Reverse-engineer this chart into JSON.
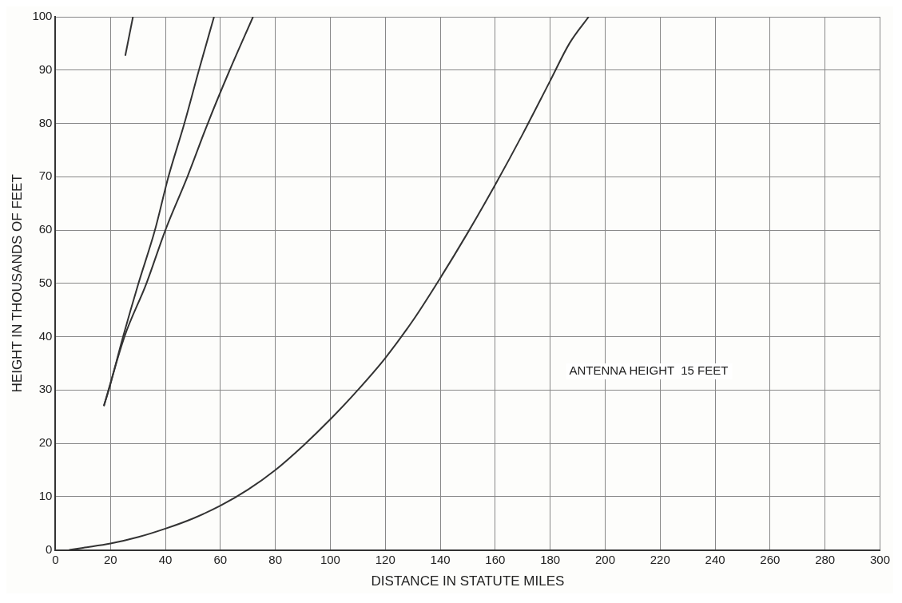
{
  "chart_data": {
    "type": "line",
    "xlabel": "DISTANCE IN STATUTE MILES",
    "ylabel": "HEIGHT IN THOUSANDS OF FEET",
    "annotations": [
      "ANTENNA HEIGHT  15 FEET"
    ],
    "xlim": [
      0,
      300
    ],
    "xticks": [
      0,
      20,
      40,
      60,
      80,
      100,
      120,
      140,
      160,
      180,
      200,
      220,
      240,
      260,
      280,
      300
    ],
    "ylim": [
      0,
      100
    ],
    "yticks": [
      0,
      10,
      20,
      30,
      40,
      50,
      60,
      70,
      80,
      90,
      100
    ],
    "grid": true,
    "legend": false,
    "marker": "none",
    "line_style": "solid",
    "series": [
      {
        "color": "#333333",
        "x": [
          25.4,
          28.2
        ],
        "values": [
          92.7,
          100
        ]
      },
      {
        "color": "#333333",
        "x": [
          17.6,
          19.4,
          24.6,
          30.2,
          36.2,
          41.1,
          46.9,
          52.2,
          57.7
        ],
        "values": [
          27,
          30,
          40,
          50,
          60,
          70,
          80,
          90,
          100
        ]
      },
      {
        "color": "#333333",
        "x": [
          17.6,
          25.1,
          33.1,
          40,
          48,
          55.4,
          63.4,
          71.9
        ],
        "values": [
          27,
          40,
          50,
          60,
          70,
          80,
          90,
          100
        ]
      },
      {
        "color": "#333333",
        "x": [
          5,
          10,
          20,
          30,
          40,
          50,
          60,
          70,
          80,
          90,
          100,
          110,
          120,
          130,
          140,
          150,
          160,
          170,
          180,
          187,
          194
        ],
        "values": [
          0,
          0.4,
          1.2,
          2.4,
          4,
          5.9,
          8.3,
          11.3,
          15,
          19.5,
          24.5,
          30,
          36,
          43,
          51,
          59.5,
          68.5,
          78,
          88,
          95,
          100
        ]
      }
    ]
  }
}
